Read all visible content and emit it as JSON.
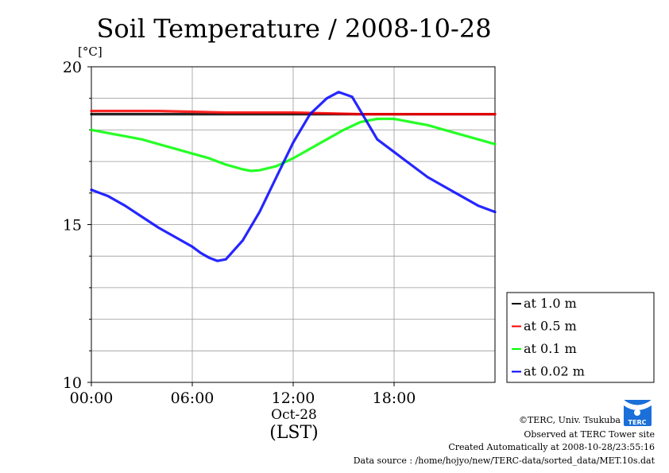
{
  "chart_data": {
    "type": "line",
    "title": "Soil Temperature / 2008-10-28",
    "ylabel": "[°C]",
    "ylim": [
      10,
      20
    ],
    "yticks": [
      10,
      15,
      20
    ],
    "xlim": [
      0,
      24
    ],
    "xticks": [
      {
        "value": 0,
        "label": "00:00"
      },
      {
        "value": 6,
        "label": "06:00"
      },
      {
        "value": 12,
        "label": "12:00"
      },
      {
        "value": 18,
        "label": "18:00"
      }
    ],
    "xsublabel": "Oct-28",
    "xlabel": "(LST)",
    "grid": true,
    "legend_position": "bottom-right-outside",
    "series": [
      {
        "name": "at 1.0 m",
        "color": "#000000",
        "x": [
          0,
          4,
          8,
          12,
          16,
          20,
          24
        ],
        "y": [
          18.5,
          18.5,
          18.5,
          18.5,
          18.5,
          18.5,
          18.5
        ]
      },
      {
        "name": "at 0.5 m",
        "color": "#ff0000",
        "x": [
          0,
          4,
          8,
          12,
          16,
          20,
          24
        ],
        "y": [
          18.6,
          18.6,
          18.55,
          18.55,
          18.5,
          18.5,
          18.5
        ]
      },
      {
        "name": "at 0.1 m",
        "color": "#00ff00",
        "x": [
          0,
          1,
          2,
          3,
          4,
          5,
          6,
          7,
          8,
          9,
          9.5,
          10,
          11,
          12,
          13,
          14,
          15,
          16,
          17,
          18,
          19,
          20,
          21,
          22,
          23,
          24
        ],
        "y": [
          18.0,
          17.9,
          17.8,
          17.7,
          17.55,
          17.4,
          17.25,
          17.1,
          16.9,
          16.75,
          16.7,
          16.72,
          16.85,
          17.1,
          17.4,
          17.7,
          18.0,
          18.25,
          18.35,
          18.35,
          18.25,
          18.15,
          18.0,
          17.85,
          17.7,
          17.55
        ]
      },
      {
        "name": "at 0.02 m",
        "color": "#0000ff",
        "x": [
          0,
          1,
          2,
          3,
          4,
          5,
          6,
          6.5,
          7,
          7.5,
          8,
          9,
          10,
          11,
          12,
          13,
          14,
          14.7,
          15.5,
          16,
          17,
          18,
          19,
          20,
          21,
          22,
          23,
          24
        ],
        "y": [
          16.1,
          15.9,
          15.6,
          15.25,
          14.9,
          14.6,
          14.3,
          14.1,
          13.95,
          13.85,
          13.9,
          14.5,
          15.4,
          16.5,
          17.6,
          18.5,
          19.0,
          19.2,
          19.05,
          18.6,
          17.7,
          17.3,
          16.9,
          16.5,
          16.2,
          15.9,
          15.6,
          15.4
        ]
      }
    ]
  },
  "footer": {
    "copyright": "©TERC, Univ. Tsukuba",
    "observed": "Observed at TERC Tower site",
    "created": "Created Automatically at 2008-10-28/23:55:16",
    "source": "Data source : /home/hojyo/new/TERC-data/sorted_data/MET.10s.dat"
  },
  "logo": {
    "text": "TERC",
    "color": "#1a6fd8"
  }
}
